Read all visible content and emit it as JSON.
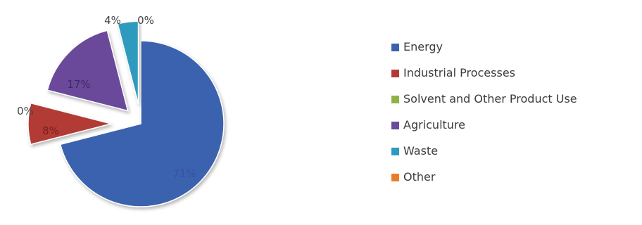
{
  "chart_data": {
    "type": "pie",
    "title": "",
    "slices": [
      {
        "name": "Energy",
        "value": 71,
        "label": "71%",
        "color": "#3A62AE"
      },
      {
        "name": "Industrial Processes",
        "value": 8,
        "label": "8%",
        "color": "#B23A36"
      },
      {
        "name": "Solvent and Other Product Use",
        "value": 0,
        "label": "0%",
        "color": "#8DB346"
      },
      {
        "name": "Agriculture",
        "value": 17,
        "label": "17%",
        "color": "#6B4A9A"
      },
      {
        "name": "Waste",
        "value": 4,
        "label": "4%",
        "color": "#2E9BBE"
      },
      {
        "name": "Other",
        "value": 0,
        "label": "0%",
        "color": "#E97E2A"
      }
    ],
    "legend_position": "right",
    "exploded": true
  }
}
